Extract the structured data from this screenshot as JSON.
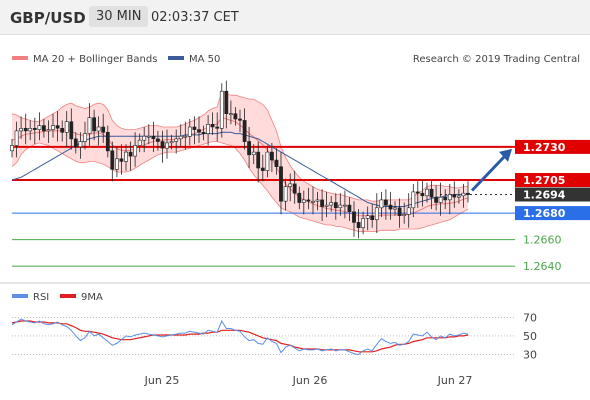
{
  "header": {
    "pair": "GBP/USD",
    "timeframe": "30 MIN",
    "time": "02:03:37 CET"
  },
  "legend": {
    "bb": "MA 20 + Bollinger Bands",
    "ma50": "MA 50",
    "source": "Research © 2019 Trading Central"
  },
  "rsi_legend": {
    "rsi": "RSI",
    "ma": "9MA"
  },
  "colors": {
    "up": "#ffffff",
    "down": "#222222",
    "bb_fill": "#ffd5d5",
    "bb_line": "#f08080",
    "ma50": "#3b5b9a",
    "red_level": "#e00000",
    "blue_level": "#2a6ee8",
    "green_level": "#4aa84a",
    "rsi": "#5b8fe8",
    "rsi_ma": "#e02020",
    "arrow": "#2a5aa8"
  },
  "chart_data": [
    {
      "type": "candlestick",
      "x_labels": [
        "Jun 25",
        "Jun 26",
        "Jun 27"
      ],
      "ylim": [
        1.2628,
        1.2788
      ],
      "levels": [
        {
          "value": "1.2730",
          "color": "#e00000",
          "label_bg": "#e00000"
        },
        {
          "value": "1.2705",
          "color": "#e00000",
          "label_bg": "#e00000"
        },
        {
          "value": "1.2694",
          "color": "#333333",
          "label_bg": "#333333"
        },
        {
          "value": "1.2680",
          "color": "#2a6ee8",
          "label_bg": "#2a6ee8"
        },
        {
          "value": "1.2660",
          "color": "#4aa84a",
          "label_bg": null
        },
        {
          "value": "1.2640",
          "color": "#4aa84a",
          "label_bg": null
        }
      ],
      "arrow": {
        "from": 1.2694,
        "to": 1.273
      },
      "close": [
        1.2731,
        1.2742,
        1.2744,
        1.2742,
        1.2744,
        1.2743,
        1.2746,
        1.2742,
        1.2743,
        1.2746,
        1.2744,
        1.2741,
        1.2749,
        1.2736,
        1.273,
        1.2734,
        1.274,
        1.2752,
        1.2742,
        1.2745,
        1.2741,
        1.2727,
        1.2713,
        1.2721,
        1.2719,
        1.2726,
        1.2723,
        1.2731,
        1.2735,
        1.2738,
        1.2738,
        1.2736,
        1.2734,
        1.2729,
        1.2733,
        1.2734,
        1.2736,
        1.2738,
        1.2738,
        1.2745,
        1.2743,
        1.2741,
        1.274,
        1.2747,
        1.2745,
        1.2744,
        1.2772,
        1.2755,
        1.2755,
        1.2751,
        1.275,
        1.2734,
        1.2724,
        1.2726,
        1.2714,
        1.2712,
        1.2726,
        1.272,
        1.2715,
        1.2689,
        1.27,
        1.2702,
        1.2695,
        1.2688,
        1.269,
        1.2689,
        1.2689,
        1.269,
        1.2685,
        1.2686,
        1.2688,
        1.2684,
        1.2686,
        1.2686,
        1.2681,
        1.2673,
        1.2669,
        1.2676,
        1.2678,
        1.2675,
        1.2684,
        1.269,
        1.2686,
        1.2683,
        1.2684,
        1.2678,
        1.2679,
        1.2684,
        1.2696,
        1.2695,
        1.2693,
        1.2698,
        1.2692,
        1.2688,
        1.2692,
        1.269,
        1.2694,
        1.2692,
        1.2693,
        1.2695,
        1.2694
      ],
      "bb_upper": [
        1.2755,
        1.2754,
        1.2752,
        1.2751,
        1.275,
        1.2749,
        1.2749,
        1.2751,
        1.2753,
        1.2755,
        1.2757,
        1.276,
        1.2762,
        1.2763,
        1.2761,
        1.276,
        1.2759,
        1.276,
        1.2762,
        1.2763,
        1.2762,
        1.2758,
        1.275,
        1.2746,
        1.2744,
        1.2743,
        1.2743,
        1.2743,
        1.2744,
        1.2745,
        1.2746,
        1.2746,
        1.2746,
        1.2745,
        1.2745,
        1.2745,
        1.2745,
        1.2746,
        1.2747,
        1.2749,
        1.275,
        1.2752,
        1.2754,
        1.2757,
        1.2759,
        1.276,
        1.2772,
        1.277,
        1.2769,
        1.2769,
        1.2768,
        1.2767,
        1.2766,
        1.2766,
        1.2764,
        1.2762,
        1.2758,
        1.275,
        1.2742,
        1.273,
        1.2722,
        1.2716,
        1.2711,
        1.2707,
        1.2704,
        1.2702,
        1.27,
        1.2698,
        1.2697,
        1.2696,
        1.2695,
        1.2694,
        1.2694,
        1.2693,
        1.2692,
        1.2691,
        1.269,
        1.269,
        1.269,
        1.2689,
        1.2689,
        1.269,
        1.269,
        1.269,
        1.269,
        1.269,
        1.269,
        1.269,
        1.2692,
        1.2695,
        1.2697,
        1.27,
        1.2701,
        1.2701,
        1.2701,
        1.27,
        1.27,
        1.2699,
        1.2699,
        1.27,
        1.27
      ],
      "bb_lower": [
        1.2715,
        1.2718,
        1.2724,
        1.2728,
        1.273,
        1.2732,
        1.2733,
        1.2732,
        1.2731,
        1.2729,
        1.2727,
        1.2725,
        1.2723,
        1.2721,
        1.2719,
        1.2718,
        1.2718,
        1.2719,
        1.2719,
        1.2718,
        1.2717,
        1.2715,
        1.2713,
        1.2711,
        1.2711,
        1.2711,
        1.2712,
        1.2714,
        1.2716,
        1.2718,
        1.272,
        1.2722,
        1.2724,
        1.2725,
        1.2726,
        1.2726,
        1.2726,
        1.2727,
        1.2728,
        1.2729,
        1.273,
        1.2731,
        1.2732,
        1.2733,
        1.2734,
        1.2734,
        1.2733,
        1.2732,
        1.2731,
        1.2729,
        1.2725,
        1.272,
        1.2714,
        1.2709,
        1.2705,
        1.2701,
        1.2697,
        1.2692,
        1.2688,
        1.2684,
        1.2682,
        1.2681,
        1.2679,
        1.2677,
        1.2676,
        1.2675,
        1.2674,
        1.2673,
        1.2672,
        1.2671,
        1.2671,
        1.267,
        1.267,
        1.2669,
        1.2668,
        1.2667,
        1.2666,
        1.2666,
        1.2666,
        1.2666,
        1.2666,
        1.2667,
        1.2667,
        1.2667,
        1.2667,
        1.2668,
        1.2668,
        1.2668,
        1.2668,
        1.2668,
        1.2669,
        1.267,
        1.2671,
        1.2672,
        1.2673,
        1.2674,
        1.2675,
        1.2677,
        1.2679,
        1.2681,
        1.2683
      ],
      "ma50": [
        1.2705,
        1.2706,
        1.2707,
        1.2709,
        1.2711,
        1.2713,
        1.2715,
        1.2717,
        1.2719,
        1.2721,
        1.2723,
        1.2725,
        1.2727,
        1.2729,
        1.2731,
        1.2733,
        1.2735,
        1.2736,
        1.2737,
        1.2738,
        1.2738,
        1.2738,
        1.2738,
        1.2738,
        1.2738,
        1.2738,
        1.2738,
        1.2738,
        1.2738,
        1.2738,
        1.2738,
        1.2738,
        1.2738,
        1.2738,
        1.2738,
        1.2738,
        1.2738,
        1.2738,
        1.2739,
        1.2739,
        1.2739,
        1.2739,
        1.274,
        1.274,
        1.274,
        1.274,
        1.2741,
        1.2741,
        1.2741,
        1.274,
        1.274,
        1.2739,
        1.2738,
        1.2737,
        1.2736,
        1.2734,
        1.2732,
        1.273,
        1.2728,
        1.2726,
        1.2724,
        1.2722,
        1.272,
        1.2718,
        1.2716,
        1.2714,
        1.2712,
        1.271,
        1.2708,
        1.2706,
        1.2704,
        1.2702,
        1.27,
        1.2698,
        1.2696,
        1.2694,
        1.2692,
        1.269,
        1.2688,
        1.2687,
        1.2686,
        1.2685,
        1.2685,
        1.2685,
        1.2685,
        1.2685,
        1.2685,
        1.2686,
        1.2687,
        1.2688,
        1.2689,
        1.269,
        1.2691,
        1.2692,
        1.2692,
        1.2693,
        1.2693,
        1.2694,
        1.2694,
        1.2694,
        1.2694
      ],
      "rsi_ylim": [
        22,
        80
      ],
      "rsi_levels": [
        70,
        50,
        30
      ],
      "rsi": [
        62,
        65,
        68,
        66,
        65,
        64,
        66,
        63,
        62,
        63,
        65,
        62,
        60,
        56,
        50,
        45,
        48,
        55,
        50,
        52,
        48,
        44,
        40,
        42,
        46,
        50,
        49,
        51,
        52,
        53,
        52,
        51,
        50,
        49,
        50,
        51,
        52,
        53,
        53,
        55,
        54,
        53,
        52,
        56,
        55,
        54,
        66,
        58,
        58,
        56,
        55,
        49,
        45,
        46,
        42,
        41,
        48,
        44,
        42,
        32,
        38,
        40,
        37,
        34,
        36,
        35,
        35,
        36,
        34,
        35,
        36,
        34,
        35,
        35,
        33,
        31,
        30,
        34,
        36,
        34,
        41,
        47,
        44,
        42,
        43,
        40,
        41,
        44,
        52,
        51,
        50,
        54,
        49,
        46,
        50,
        48,
        52,
        50,
        51,
        53,
        52
      ],
      "rsi_ma": [
        64,
        65,
        66,
        66,
        66,
        65,
        65,
        65,
        64,
        64,
        64,
        63,
        63,
        61,
        59,
        56,
        55,
        55,
        54,
        53,
        52,
        50,
        48,
        47,
        46,
        46,
        46,
        47,
        48,
        49,
        50,
        51,
        51,
        51,
        51,
        51,
        51,
        51,
        51,
        52,
        52,
        52,
        53,
        53,
        54,
        54,
        56,
        56,
        56,
        56,
        56,
        55,
        54,
        52,
        50,
        48,
        47,
        46,
        45,
        42,
        41,
        40,
        38,
        37,
        36,
        36,
        36,
        36,
        35,
        35,
        35,
        35,
        35,
        35,
        35,
        34,
        33,
        33,
        33,
        33,
        34,
        36,
        37,
        38,
        40,
        41,
        41,
        42,
        44,
        45,
        46,
        48,
        48,
        48,
        48,
        48,
        49,
        49,
        50,
        50,
        51
      ]
    }
  ]
}
